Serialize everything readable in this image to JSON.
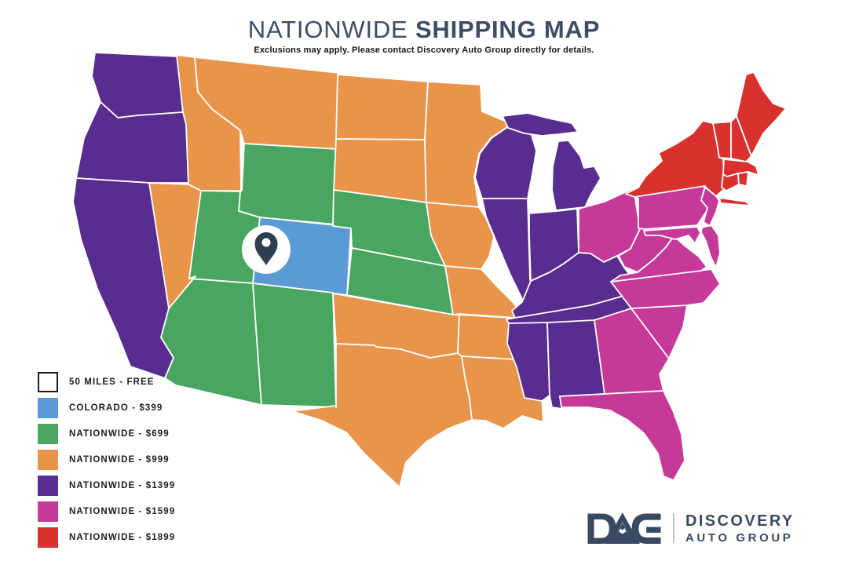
{
  "title": {
    "regular": "NATIONWIDE ",
    "bold": "SHIPPING MAP"
  },
  "subtitle": "Exclusions may apply. Please contact Discovery Auto Group directly for details.",
  "legend": {
    "items": [
      {
        "label": "50 MILES - FREE",
        "color": "#ffffff",
        "swatch_border": "#1a1a1a",
        "states": []
      },
      {
        "label": "COLORADO - $399",
        "color": "#5b9bd5",
        "states": [
          "CO"
        ]
      },
      {
        "label": "NATIONWIDE - $699",
        "color": "#48a660",
        "states": [
          "WY",
          "UT",
          "AZ",
          "NM",
          "NE",
          "KS"
        ]
      },
      {
        "label": "NATIONWIDE - $999",
        "color": "#e8944a",
        "states": [
          "ID",
          "MT",
          "NV",
          "ND",
          "SD",
          "MN",
          "IA",
          "MO",
          "OK",
          "TX",
          "AR",
          "LA"
        ]
      },
      {
        "label": "NATIONWIDE - $1399",
        "color": "#592c90",
        "states": [
          "WA",
          "OR",
          "CA",
          "WI",
          "MI",
          "IL",
          "IN",
          "KY",
          "TN",
          "MS",
          "AL"
        ]
      },
      {
        "label": "NATIONWIDE - $1599",
        "color": "#c53998",
        "states": [
          "OH",
          "PA",
          "NJ",
          "MD",
          "DE",
          "WV",
          "VA",
          "NC",
          "SC",
          "GA",
          "FL"
        ]
      },
      {
        "label": "NATIONWIDE - $1899",
        "color": "#d8312e",
        "states": [
          "NY",
          "VT",
          "NH",
          "MA",
          "RI",
          "CT",
          "ME"
        ]
      }
    ]
  },
  "marker": {
    "name": "origin-pin",
    "state": "CO",
    "circle_color": "#ffffff",
    "pin_color": "#2e3e50"
  },
  "map": {
    "border_color": "#ffffff"
  },
  "logo": {
    "abbr": "DAG",
    "line1": "DISCOVERY",
    "line2": "AUTO GROUP",
    "color": "#3a4963"
  }
}
